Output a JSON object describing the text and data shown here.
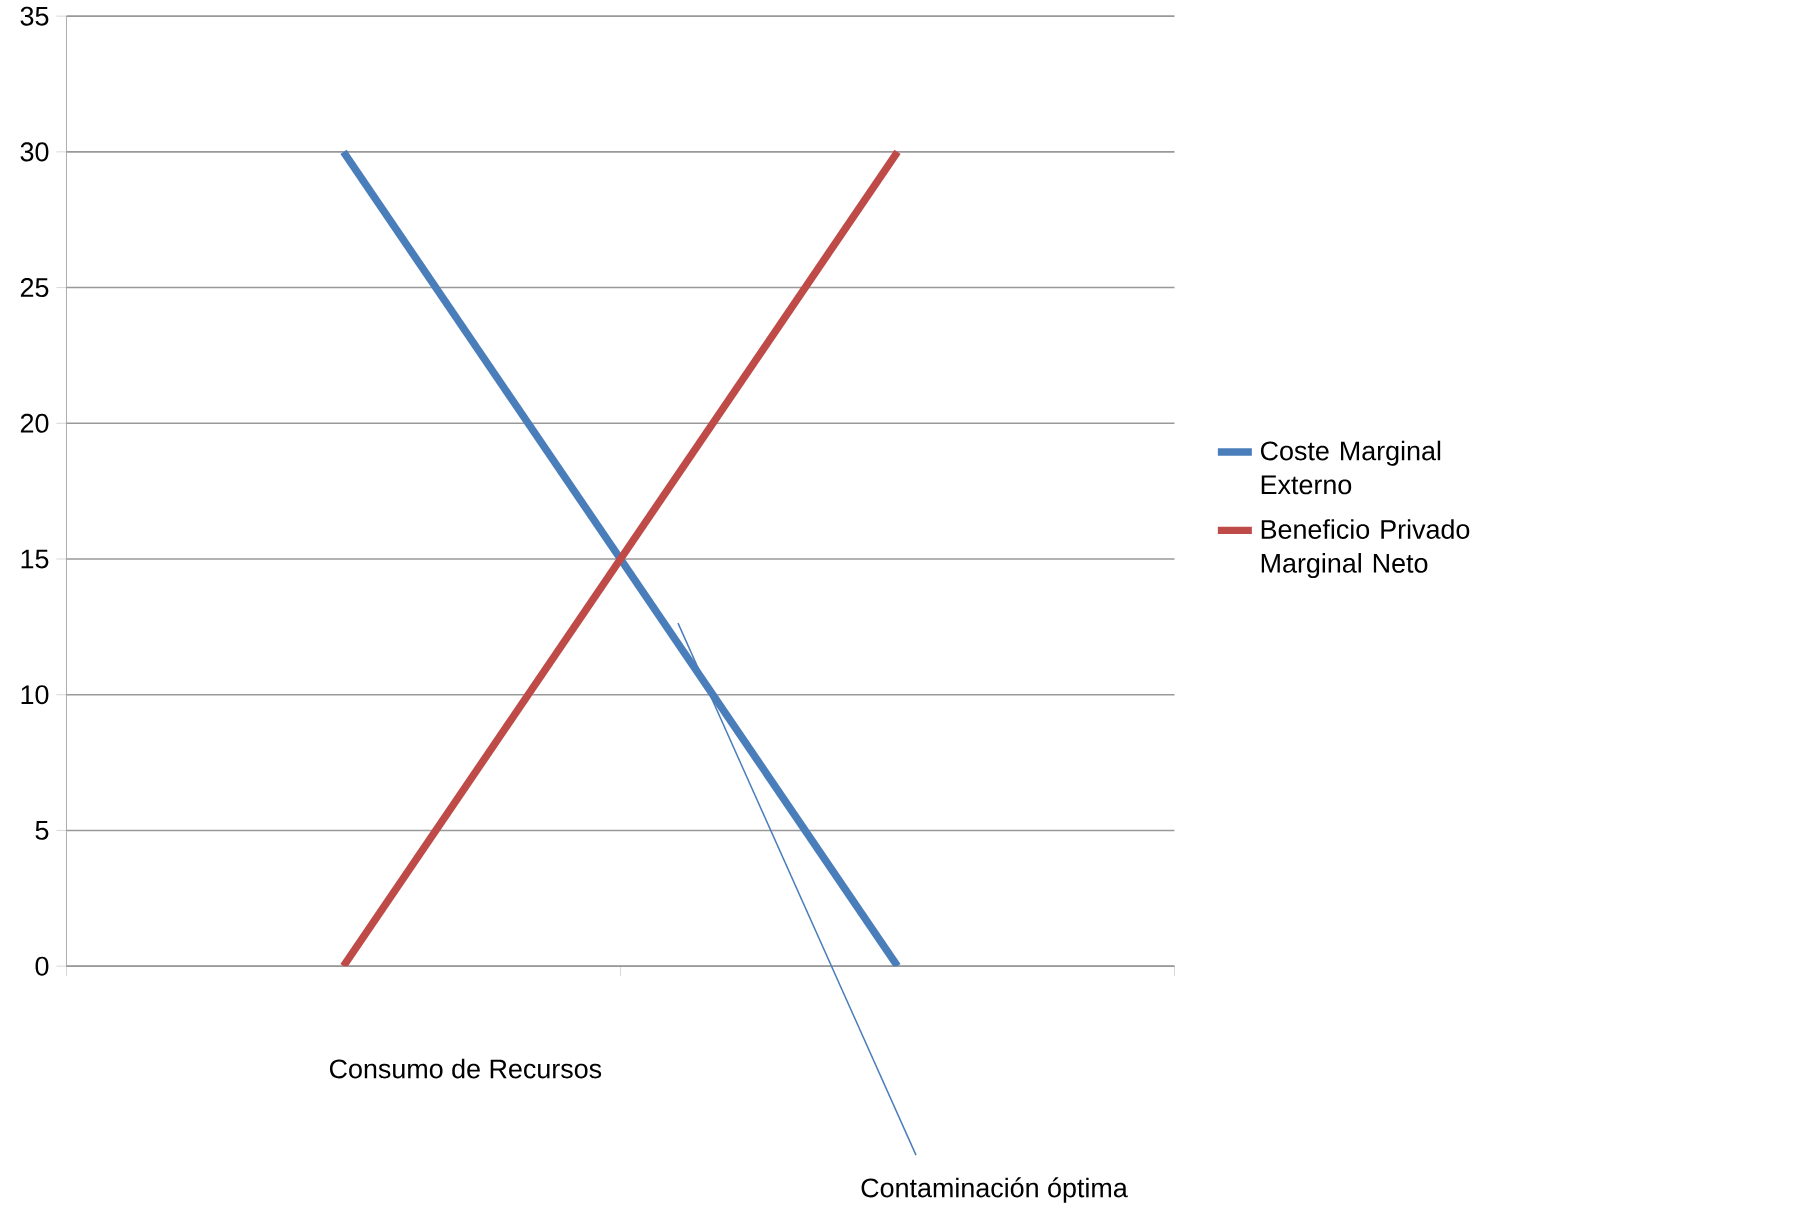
{
  "chart_data": {
    "type": "line",
    "categories": [
      null,
      null
    ],
    "series": [
      {
        "name": "Coste Marginal Externo",
        "color": "#4a7ebb",
        "values": [
          30,
          0
        ]
      },
      {
        "name": "Beneficio Privado Marginal Neto",
        "color": "#be4b48",
        "values": [
          0,
          30
        ]
      }
    ],
    "ylim": [
      0,
      35
    ],
    "yticks": [
      0,
      5,
      10,
      15,
      20,
      25,
      30,
      35
    ],
    "grid": "y",
    "legend": "right",
    "marker": "none",
    "line_style": "solid",
    "xlabel": "Consumo de Recursos",
    "annotations": [
      "Contaminación óptima"
    ]
  }
}
